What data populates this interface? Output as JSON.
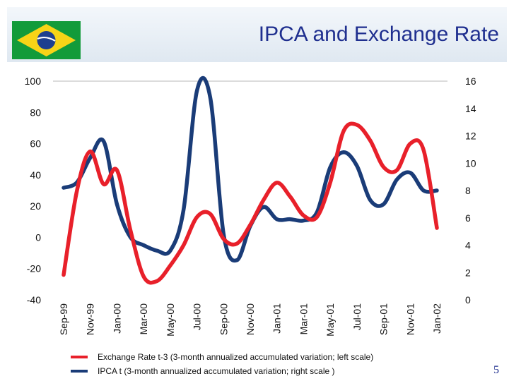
{
  "title": "IPCA and Exchange Rate",
  "page_number": "5",
  "colors": {
    "exchange_series": "#e8202a",
    "ipca_series": "#1a3c78",
    "axis_line": "#b8b8b8",
    "flag_green": "#129b3a",
    "flag_yellow": "#f7d417",
    "flag_blue": "#1d3f8f"
  },
  "legend": [
    {
      "label": "Exchange Rate t-3 (3-month annualized accumulated variation; left scale)"
    },
    {
      "label": "IPCA  t (3-month annualized accumulated variation; right scale )"
    }
  ],
  "chart_data": {
    "type": "line",
    "title": "IPCA and Exchange Rate",
    "categories": [
      "Sep-99",
      "Nov-99",
      "Jan-00",
      "Mar-00",
      "May-00",
      "Jul-00",
      "Sep-00",
      "Nov-00",
      "Jan-01",
      "Mar-01",
      "May-01",
      "Jul-01",
      "Sep-01",
      "Nov-01",
      "Jan-02"
    ],
    "left_axis": {
      "range": [
        -40,
        100
      ],
      "ticks": [
        "100",
        "80",
        "60",
        "40",
        "20",
        "0",
        "-20",
        "-40"
      ]
    },
    "right_axis": {
      "range": [
        0,
        16
      ],
      "ticks": [
        "16",
        "14",
        "12",
        "10",
        "8",
        "6",
        "4",
        "2",
        "0"
      ]
    },
    "grid": false,
    "legend_position": "bottom",
    "x": [
      0,
      0.5,
      1,
      1.5,
      2,
      2.5,
      3,
      3.5,
      4,
      4.5,
      5,
      5.5,
      6,
      6.5,
      7,
      7.5,
      8,
      8.5,
      9,
      9.5,
      10,
      10.5,
      11,
      11.5,
      12,
      12.5,
      13,
      13.5,
      14
    ],
    "series": [
      {
        "name": "Exchange Rate t-3",
        "axis": "left",
        "values": [
          -24,
          30,
          55,
          34,
          43,
          5,
          -25,
          -28,
          -18,
          -5,
          13,
          15,
          -1,
          -4,
          8,
          24,
          35,
          26,
          14,
          13,
          35,
          68,
          72,
          62,
          45,
          43,
          60,
          56,
          6
        ]
      },
      {
        "name": "IPCA  t",
        "axis": "right",
        "values": [
          8.2,
          8.6,
          10.4,
          11.6,
          7.0,
          4.6,
          4.0,
          3.6,
          3.6,
          6.6,
          15.3,
          14.8,
          4.8,
          2.9,
          5.4,
          6.8,
          5.9,
          5.9,
          5.8,
          6.4,
          9.7,
          10.8,
          9.8,
          7.3,
          7.0,
          8.8,
          9.3,
          8.0,
          8.0
        ]
      }
    ]
  }
}
